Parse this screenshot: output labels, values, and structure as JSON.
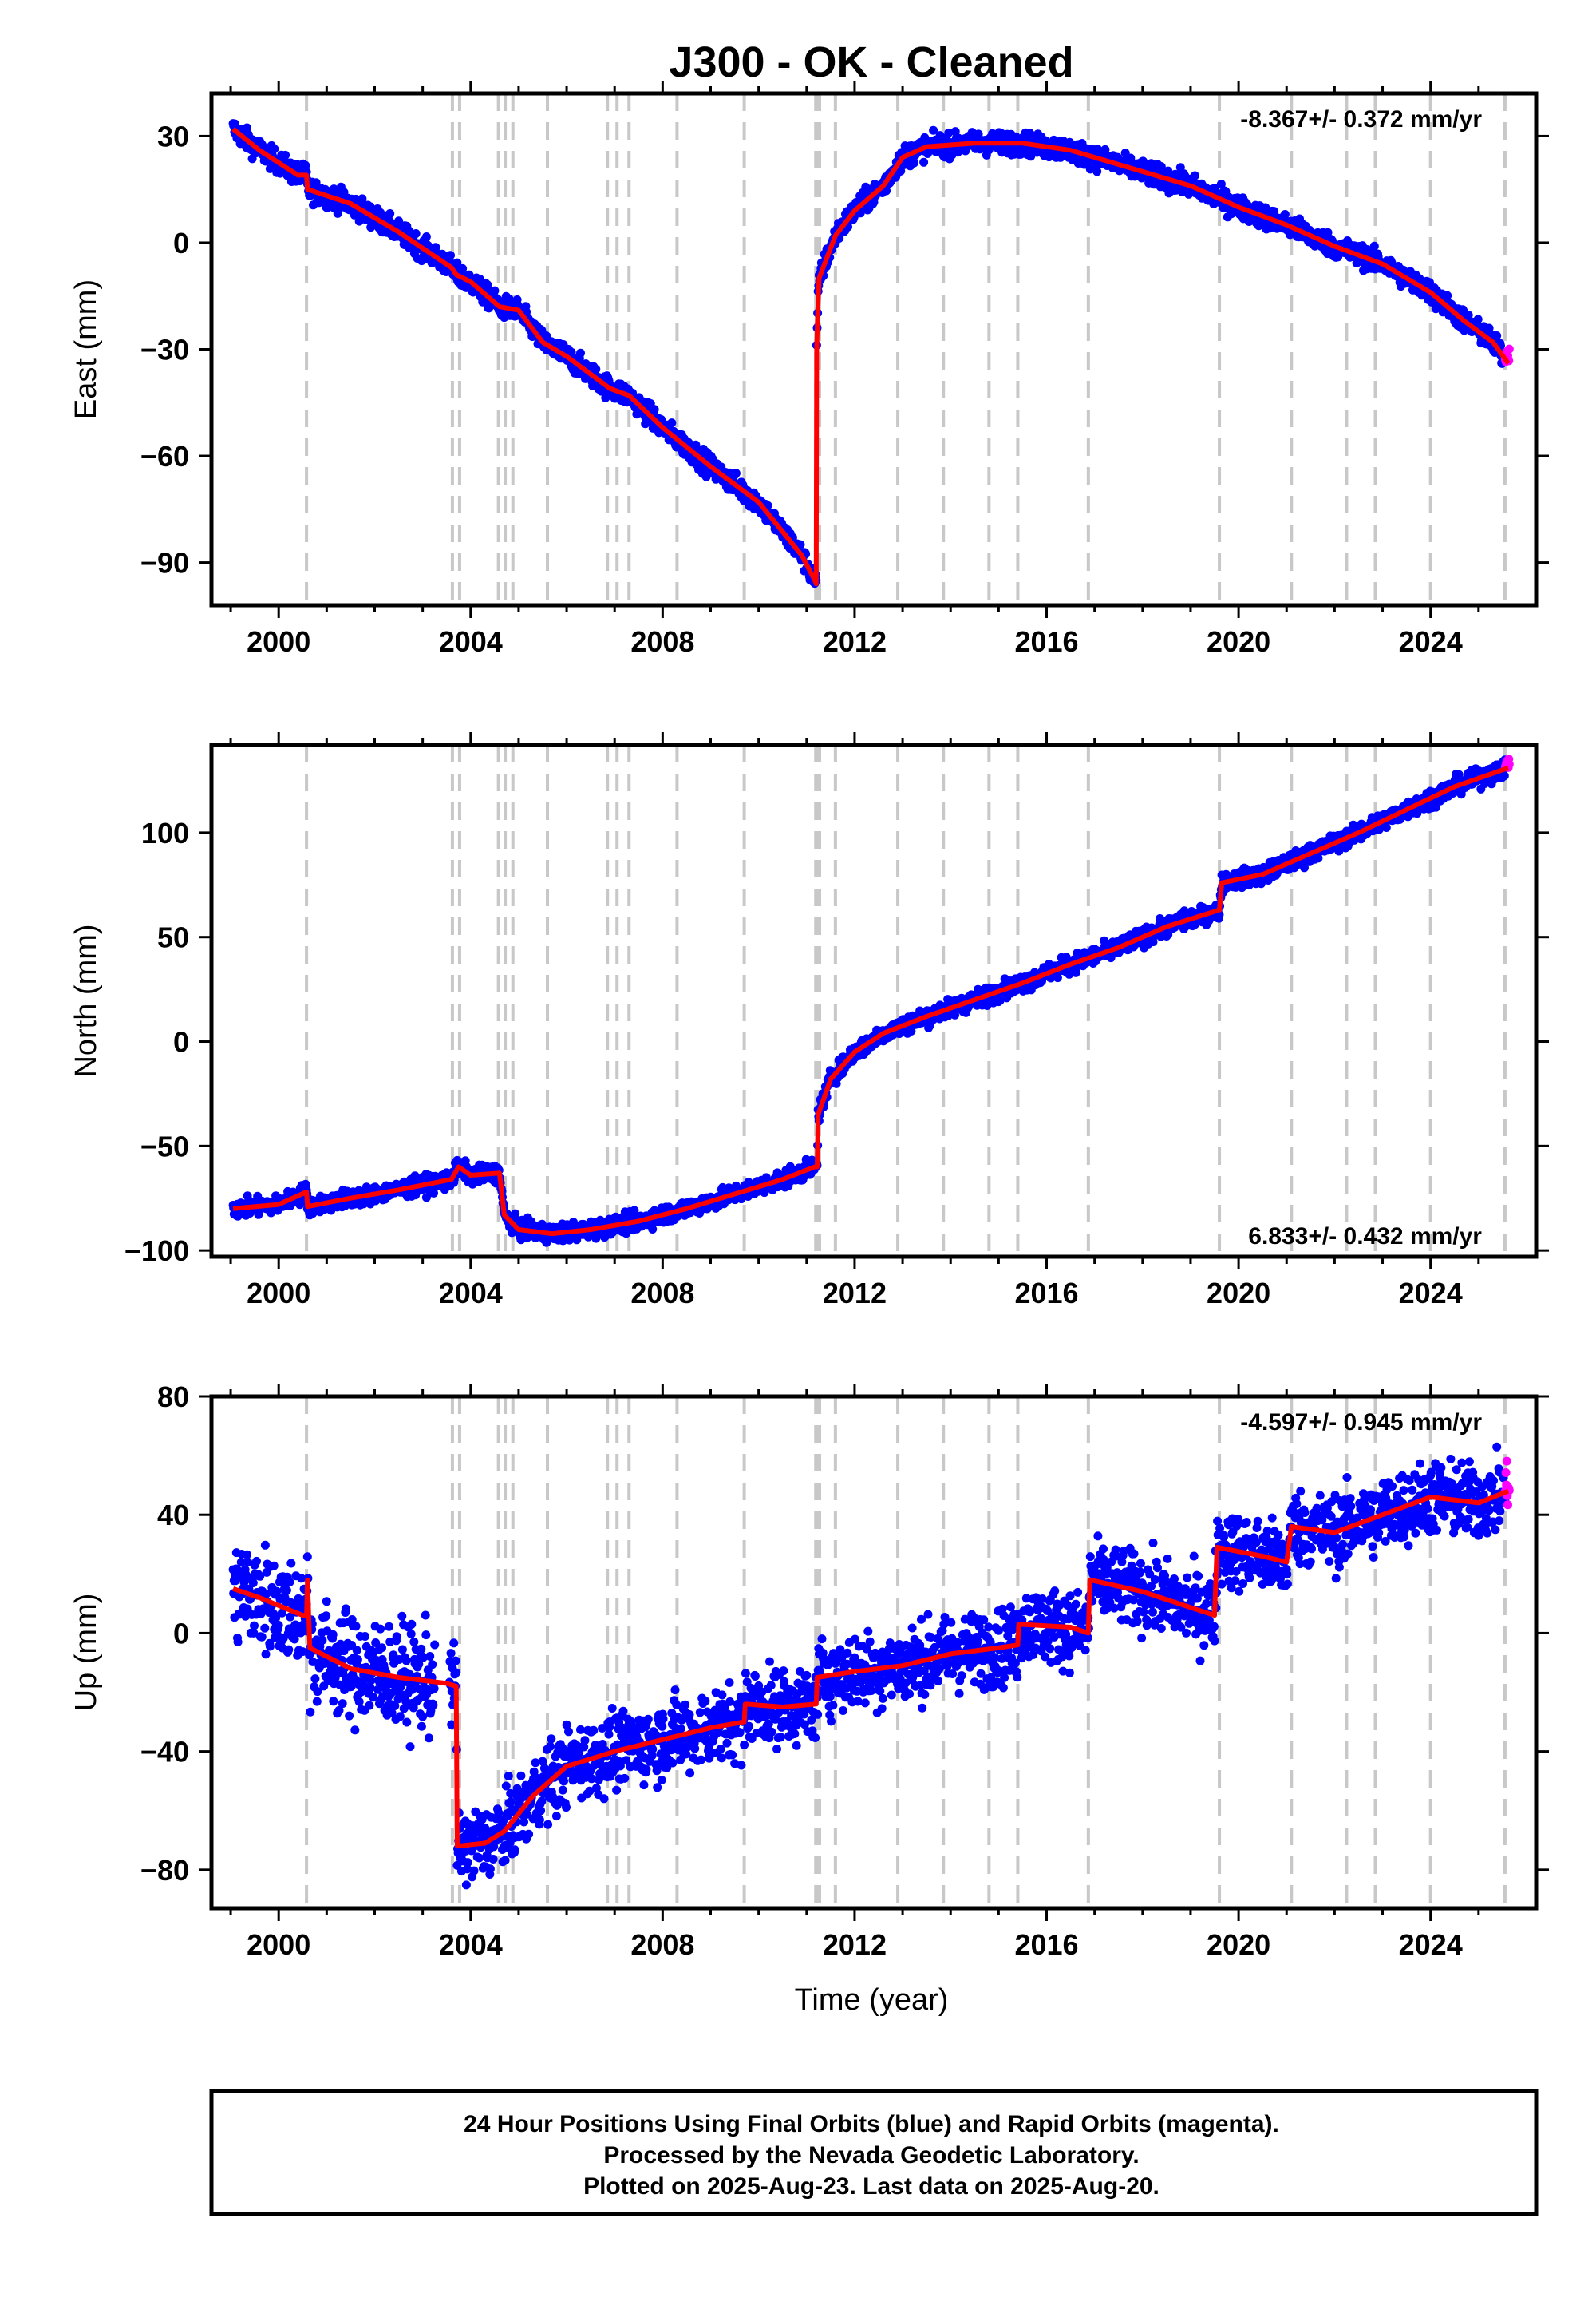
{
  "chart_data": {
    "title": "J300  - OK - Cleaned",
    "type": "scatter",
    "x_ticks": [
      2000,
      2004,
      2008,
      2012,
      2016,
      2020,
      2024
    ],
    "xlim": [
      1998.6,
      2026.2
    ],
    "xlabel": "Time (year)",
    "event_lines": [
      2000.58,
      2003.62,
      2003.77,
      2004.58,
      2004.72,
      2004.88,
      2005.6,
      2006.85,
      2007.05,
      2007.3,
      2008.3,
      2009.7,
      2011.19,
      2011.23,
      2011.27,
      2011.6,
      2012.9,
      2013.85,
      2014.8,
      2015.4,
      2016.87,
      2019.6,
      2021.1,
      2022.25,
      2022.85,
      2024.0,
      2025.55
    ],
    "colors": {
      "final": "#0000ff",
      "rapid": "#ff00ff",
      "model": "#ff0000",
      "event": "#c8c8c8"
    },
    "panels": [
      {
        "ylabel": "East (mm)",
        "rate_text": "-8.367+/- 0.372 mm/yr",
        "rate_position": "top-right",
        "y_ticks": [
          30,
          0,
          -30,
          -60,
          -90
        ],
        "ylim": [
          -102,
          42
        ],
        "scatter": 2.2,
        "model": [
          [
            1999.05,
            32
          ],
          [
            1999.6,
            26
          ],
          [
            2000.4,
            19
          ],
          [
            2000.58,
            19
          ],
          [
            2000.6,
            15
          ],
          [
            2001.5,
            11
          ],
          [
            2002.5,
            3
          ],
          [
            2003.6,
            -7
          ],
          [
            2003.7,
            -9
          ],
          [
            2004.0,
            -11
          ],
          [
            2004.6,
            -18
          ],
          [
            2005.0,
            -19
          ],
          [
            2005.5,
            -28
          ],
          [
            2006.0,
            -32
          ],
          [
            2006.9,
            -41
          ],
          [
            2007.3,
            -43
          ],
          [
            2008.0,
            -52
          ],
          [
            2009.0,
            -63
          ],
          [
            2010.0,
            -73
          ],
          [
            2010.9,
            -88
          ],
          [
            2011.17,
            -95
          ],
          [
            2011.2,
            -96
          ],
          [
            2011.21,
            -30
          ],
          [
            2011.23,
            -20
          ],
          [
            2011.26,
            -10
          ],
          [
            2011.4,
            -5
          ],
          [
            2011.6,
            2
          ],
          [
            2012.0,
            9
          ],
          [
            2012.6,
            16
          ],
          [
            2013.0,
            24
          ],
          [
            2013.5,
            27
          ],
          [
            2014.5,
            28
          ],
          [
            2015.5,
            28
          ],
          [
            2016.5,
            26
          ],
          [
            2017.0,
            24
          ],
          [
            2018.0,
            20
          ],
          [
            2019.0,
            16
          ],
          [
            2020.0,
            10
          ],
          [
            2021.0,
            5
          ],
          [
            2022.0,
            -1
          ],
          [
            2023.0,
            -6
          ],
          [
            2024.0,
            -14
          ],
          [
            2024.7,
            -22
          ],
          [
            2025.3,
            -28
          ],
          [
            2025.62,
            -34
          ]
        ],
        "rapid_y": -31
      },
      {
        "ylabel": "North (mm)",
        "rate_text": "6.833+/- 0.432 mm/yr",
        "rate_position": "bottom-right",
        "y_ticks": [
          100,
          50,
          0,
          -50,
          -100
        ],
        "ylim": [
          -103,
          142
        ],
        "scatter": 3.0,
        "model": [
          [
            1999.05,
            -80
          ],
          [
            2000.0,
            -78
          ],
          [
            2000.58,
            -72
          ],
          [
            2000.6,
            -79
          ],
          [
            2001.5,
            -75
          ],
          [
            2002.5,
            -71
          ],
          [
            2003.6,
            -66
          ],
          [
            2003.75,
            -60
          ],
          [
            2004.0,
            -64
          ],
          [
            2004.6,
            -63
          ],
          [
            2004.7,
            -83
          ],
          [
            2005.0,
            -90
          ],
          [
            2005.7,
            -92
          ],
          [
            2006.5,
            -90
          ],
          [
            2007.5,
            -86
          ],
          [
            2008.5,
            -80
          ],
          [
            2009.5,
            -73
          ],
          [
            2010.5,
            -66
          ],
          [
            2011.17,
            -60
          ],
          [
            2011.22,
            -60
          ],
          [
            2011.24,
            -35
          ],
          [
            2011.5,
            -18
          ],
          [
            2012.0,
            -5
          ],
          [
            2012.6,
            4
          ],
          [
            2013.5,
            12
          ],
          [
            2014.5,
            20
          ],
          [
            2015.5,
            28
          ],
          [
            2016.5,
            37
          ],
          [
            2017.5,
            45
          ],
          [
            2018.5,
            55
          ],
          [
            2019.6,
            63
          ],
          [
            2019.65,
            76
          ],
          [
            2020.5,
            80
          ],
          [
            2021.5,
            90
          ],
          [
            2022.5,
            100
          ],
          [
            2023.5,
            111
          ],
          [
            2024.5,
            122
          ],
          [
            2025.62,
            131
          ]
        ],
        "rapid_y": 133
      },
      {
        "ylabel": "Up (mm)",
        "rate_text": "-4.597+/- 0.945 mm/yr",
        "rate_position": "top-right",
        "y_ticks": [
          80,
          40,
          0,
          -40,
          -80
        ],
        "ylim": [
          -93,
          80
        ],
        "scatter": 9.0,
        "model": [
          [
            1999.05,
            15
          ],
          [
            1999.6,
            12
          ],
          [
            2000.5,
            6
          ],
          [
            2000.58,
            6
          ],
          [
            2000.6,
            18
          ],
          [
            2000.65,
            -5
          ],
          [
            2001.5,
            -12
          ],
          [
            2002.5,
            -15
          ],
          [
            2003.5,
            -17
          ],
          [
            2003.7,
            -18
          ],
          [
            2003.72,
            -72
          ],
          [
            2004.3,
            -71
          ],
          [
            2004.7,
            -67
          ],
          [
            2005.3,
            -55
          ],
          [
            2006.0,
            -45
          ],
          [
            2007.0,
            -40
          ],
          [
            2008.0,
            -36
          ],
          [
            2009.0,
            -32
          ],
          [
            2009.7,
            -30
          ],
          [
            2009.72,
            -24
          ],
          [
            2010.5,
            -25
          ],
          [
            2011.2,
            -24
          ],
          [
            2011.22,
            -15
          ],
          [
            2012.0,
            -13
          ],
          [
            2013.0,
            -11
          ],
          [
            2014.0,
            -7
          ],
          [
            2015.0,
            -5
          ],
          [
            2015.4,
            -4
          ],
          [
            2015.42,
            3
          ],
          [
            2016.5,
            2
          ],
          [
            2016.87,
            0
          ],
          [
            2016.9,
            18
          ],
          [
            2018.0,
            14
          ],
          [
            2019.5,
            6
          ],
          [
            2019.55,
            29
          ],
          [
            2020.5,
            26
          ],
          [
            2021.0,
            24
          ],
          [
            2021.1,
            36
          ],
          [
            2022.0,
            34
          ],
          [
            2023.0,
            40
          ],
          [
            2024.0,
            46
          ],
          [
            2025.0,
            44
          ],
          [
            2025.62,
            48
          ]
        ],
        "rapid_y": 50
      }
    ],
    "footer_lines": [
      "24 Hour Positions Using Final Orbits (blue) and Rapid Orbits (magenta).",
      "Processed by the Nevada Geodetic Laboratory.",
      "Plotted on 2025-Aug-23. Last data on 2025-Aug-20."
    ]
  }
}
